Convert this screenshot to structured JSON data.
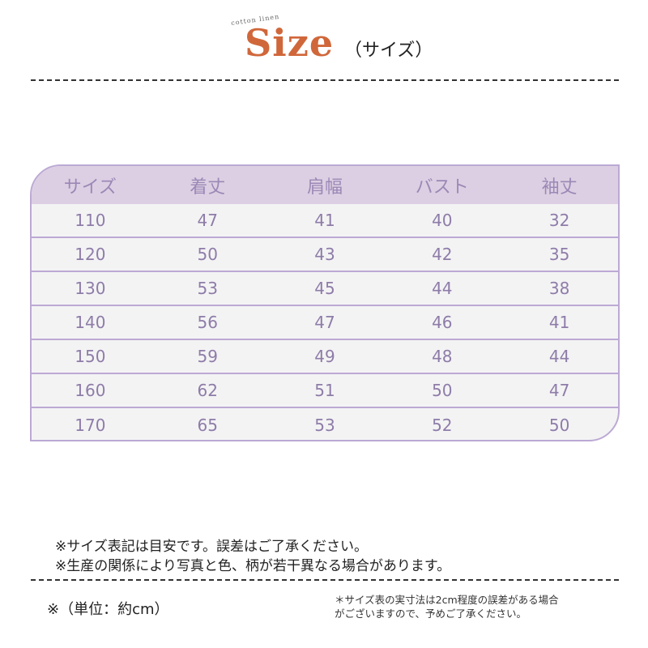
{
  "header": {
    "badge": "cotton linen",
    "title": "Size",
    "subtitle": "（サイズ）"
  },
  "table": {
    "columns": [
      "サイズ",
      "着丈",
      "肩幅",
      "バスト",
      "袖丈"
    ],
    "rows": [
      [
        "110",
        "47",
        "41",
        "40",
        "32"
      ],
      [
        "120",
        "50",
        "43",
        "42",
        "35"
      ],
      [
        "130",
        "53",
        "45",
        "44",
        "38"
      ],
      [
        "140",
        "56",
        "47",
        "46",
        "41"
      ],
      [
        "150",
        "59",
        "49",
        "48",
        "44"
      ],
      [
        "160",
        "62",
        "51",
        "50",
        "47"
      ],
      [
        "170",
        "65",
        "53",
        "52",
        "50"
      ]
    ]
  },
  "notes": [
    "※サイズ表記は目安です。誤差はご了承ください。",
    "※生産の関係により写真と色、柄が若干異なる場合があります。"
  ],
  "unit": "※（単位：約cm）",
  "fine_print": [
    "＊サイズ表の実寸法は2cm程度の誤差がある場合",
    "がございますので、予めご了承ください。"
  ],
  "colors": {
    "title": "#d0673a",
    "header_bg": "#ddcfe3",
    "border": "#bca9d4",
    "text": "#8e7ca8"
  }
}
